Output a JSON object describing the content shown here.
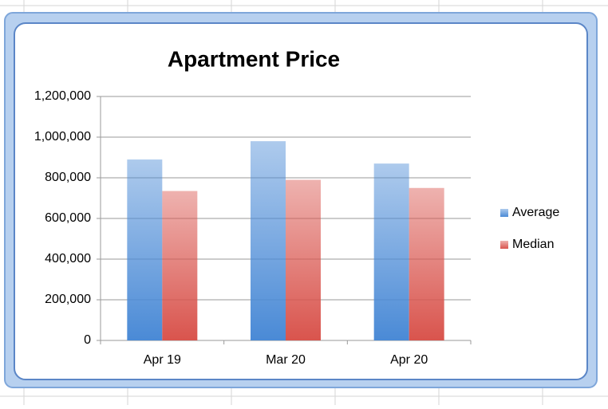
{
  "chart_data": {
    "type": "bar",
    "title": "Apartment Price",
    "categories": [
      "Apr 19",
      "Mar 20",
      "Apr 20"
    ],
    "series": [
      {
        "name": "Average",
        "color": "#4a8ad6",
        "values": [
          890000,
          980000,
          870000
        ]
      },
      {
        "name": "Median",
        "color": "#d9544d",
        "values": [
          735000,
          790000,
          750000
        ]
      }
    ],
    "ylim": [
      0,
      1200000
    ],
    "yticks": [
      0,
      {
        "value": 200000,
        "label": "200,000"
      },
      {
        "value": 400000,
        "label": "400,000"
      },
      {
        "value": 600000,
        "label": "600,000"
      },
      {
        "value": 800000,
        "label": "800,000"
      },
      {
        "value": 1000000,
        "label": "1,000,000"
      },
      {
        "value": 1200000,
        "label": "1,200,000"
      }
    ],
    "grid": true,
    "legend": "right"
  }
}
